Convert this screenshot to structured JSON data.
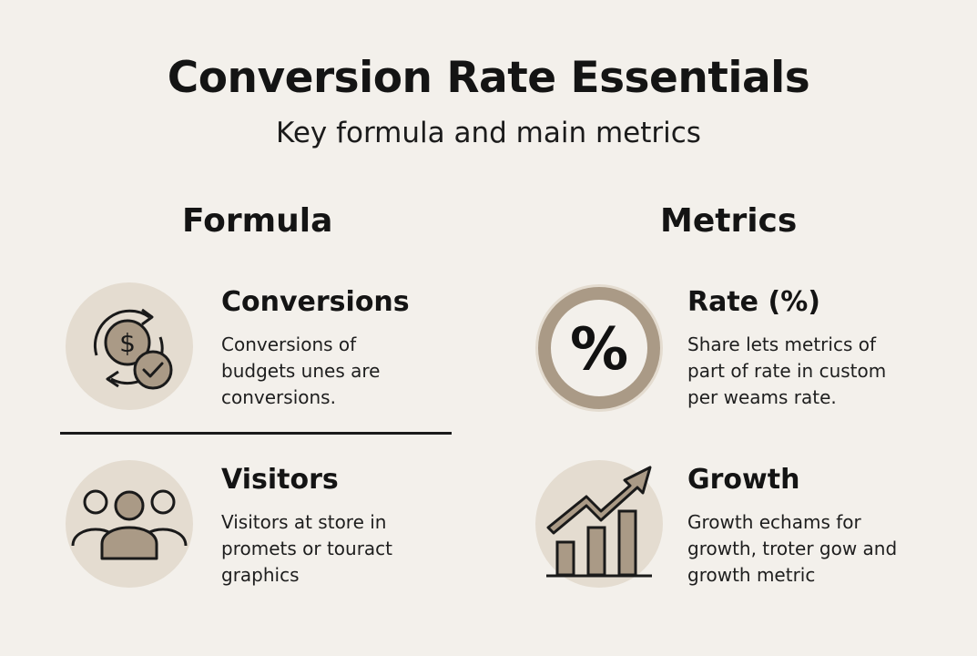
{
  "header": {
    "title": "Conversion Rate Essentials",
    "subtitle": "Key formula and main metrics"
  },
  "columns": {
    "left_heading": "Formula",
    "right_heading": "Metrics"
  },
  "items": {
    "conversions": {
      "title": "Conversions",
      "desc": [
        "Conversions of",
        "budgets unes are",
        "conversions."
      ],
      "icon": "dollar-cycle-check-icon"
    },
    "visitors": {
      "title": "Visitors",
      "desc": [
        "Visitors at store in",
        "promets or touract",
        "graphics"
      ],
      "icon": "people-group-icon"
    },
    "rate": {
      "title": "Rate (%)",
      "desc": [
        "Share lets metrics of",
        "part of rate in custom",
        "per weams rate."
      ],
      "icon": "percent-ring-icon"
    },
    "growth": {
      "title": "Growth",
      "desc": [
        "Growth echams for",
        "growth, troter gow and",
        "growth metric"
      ],
      "icon": "growth-chart-icon"
    }
  },
  "colors": {
    "background": "#f3f0eb",
    "icon_fill": "#e4dcd0",
    "accent": "#aa9a86",
    "ink": "#141414"
  }
}
